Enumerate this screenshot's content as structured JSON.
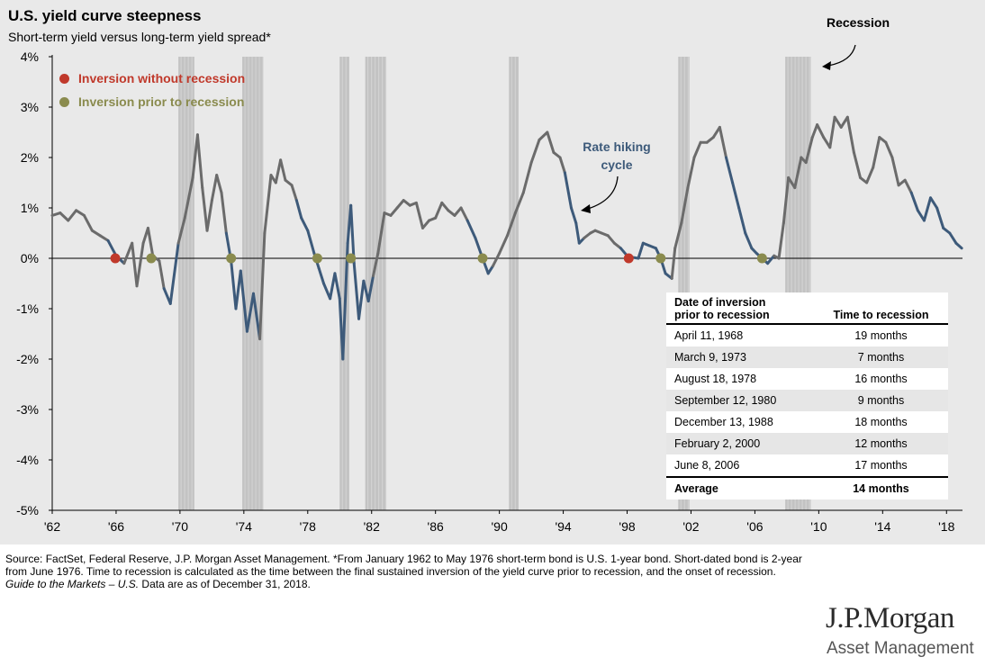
{
  "title": "U.S. yield curve steepness",
  "subtitle": "Short-term yield versus long-term yield spread*",
  "legend": {
    "red": "Inversion without recession",
    "olive": "Inversion prior to recession"
  },
  "annotations": {
    "recession": "Recession",
    "hiking_line1": "Rate hiking",
    "hiking_line2": "cycle"
  },
  "table": {
    "header_col1_line1": "Date of inversion",
    "header_col1_line2": "prior to recession",
    "header_col2": "Time to recession",
    "rows": [
      {
        "date": "April 11, 1968",
        "time": "19 months"
      },
      {
        "date": "March 9, 1973",
        "time": "7 months"
      },
      {
        "date": "August 18, 1978",
        "time": "16 months"
      },
      {
        "date": "September 12, 1980",
        "time": "9 months"
      },
      {
        "date": "December 13, 1988",
        "time": "18 months"
      },
      {
        "date": "February 2, 2000",
        "time": "12 months"
      },
      {
        "date": "June 8, 2006",
        "time": "17 months"
      }
    ],
    "footer_label": "Average",
    "footer_value": "14 months"
  },
  "footnote": {
    "text": "Source: FactSet, Federal Reserve, J.P. Morgan Asset Management. *From January 1962 to May 1976 short-term bond is U.S. 1-year bond. Short-dated bond is 2-year from June 1976. Time to recession is calculated as the time between the final sustained inversion of the yield curve prior to recession, and the onset of recession.",
    "guide_italic": "Guide to the Markets – U.S.",
    "guide_rest": " Data are as of December 31, 2018."
  },
  "logo": {
    "name": "J.P.Morgan",
    "sub": "Asset Management"
  },
  "colors": {
    "panel_bg": "#e9e9e9",
    "spread_gray": "#6b6b6b",
    "hiking_blue": "#3d5a7a",
    "recession_band": "#c3c3c3",
    "inversion_red": "#c0392b",
    "inversion_olive": "#8a8b4e"
  },
  "chart_data": {
    "type": "line",
    "title": "U.S. yield curve steepness",
    "subtitle": "Short-term yield versus long-term yield spread*",
    "xlabel": "",
    "ylabel": "",
    "xlim": [
      1962,
      2019
    ],
    "ylim": [
      -5,
      4
    ],
    "grid": false,
    "x_tick_labels": [
      {
        "x": 1962,
        "label": "'62"
      },
      {
        "x": 1966,
        "label": "'66"
      },
      {
        "x": 1970,
        "label": "'70"
      },
      {
        "x": 1974,
        "label": "'74"
      },
      {
        "x": 1978,
        "label": "'78"
      },
      {
        "x": 1982,
        "label": "'82"
      },
      {
        "x": 1986,
        "label": "'86"
      },
      {
        "x": 1990,
        "label": "'90"
      },
      {
        "x": 1994,
        "label": "'94"
      },
      {
        "x": 1998,
        "label": "'98"
      },
      {
        "x": 2002,
        "label": "'02"
      },
      {
        "x": 2006,
        "label": "'06"
      },
      {
        "x": 2010,
        "label": "'10"
      },
      {
        "x": 2014,
        "label": "'14"
      },
      {
        "x": 2018,
        "label": "'18"
      }
    ],
    "y_tick_labels": [
      {
        "y": 4,
        "label": "4%"
      },
      {
        "y": 3,
        "label": "3%"
      },
      {
        "y": 2,
        "label": "2%"
      },
      {
        "y": 1,
        "label": "1%"
      },
      {
        "y": 0,
        "label": "0%"
      },
      {
        "y": -1,
        "label": "-1%"
      },
      {
        "y": -2,
        "label": "-2%"
      },
      {
        "y": -3,
        "label": "-3%"
      },
      {
        "y": -4,
        "label": "-4%"
      },
      {
        "y": -5,
        "label": "-5%"
      }
    ],
    "recessions": [
      [
        1969.9,
        1970.9
      ],
      [
        1973.9,
        1975.2
      ],
      [
        1980.0,
        1980.6
      ],
      [
        1981.6,
        1982.9
      ],
      [
        1990.6,
        1991.2
      ],
      [
        2001.2,
        2001.9
      ],
      [
        2007.9,
        2009.5
      ]
    ],
    "series": [
      {
        "name": "Yield curve spread",
        "points": [
          [
            1962.0,
            0.85
          ],
          [
            1962.5,
            0.9
          ],
          [
            1963.0,
            0.75
          ],
          [
            1963.5,
            0.95
          ],
          [
            1964.0,
            0.85
          ],
          [
            1964.5,
            0.55
          ],
          [
            1965.0,
            0.45
          ],
          [
            1965.5,
            0.35
          ],
          [
            1966.0,
            0.05
          ],
          [
            1966.5,
            -0.1
          ],
          [
            1967.0,
            0.3
          ],
          [
            1967.3,
            -0.55
          ],
          [
            1967.7,
            0.3
          ],
          [
            1968.0,
            0.6
          ],
          [
            1968.3,
            0.05
          ],
          [
            1968.7,
            -0.05
          ],
          [
            1969.0,
            -0.6
          ],
          [
            1969.4,
            -0.9
          ],
          [
            1969.9,
            0.3
          ],
          [
            1970.3,
            0.8
          ],
          [
            1970.8,
            1.6
          ],
          [
            1971.1,
            2.45
          ],
          [
            1971.4,
            1.4
          ],
          [
            1971.7,
            0.55
          ],
          [
            1972.0,
            1.15
          ],
          [
            1972.3,
            1.65
          ],
          [
            1972.6,
            1.3
          ],
          [
            1972.9,
            0.5
          ],
          [
            1973.2,
            -0.05
          ],
          [
            1973.5,
            -1.0
          ],
          [
            1973.8,
            -0.25
          ],
          [
            1974.2,
            -1.45
          ],
          [
            1974.6,
            -0.7
          ],
          [
            1975.0,
            -1.6
          ],
          [
            1975.3,
            0.5
          ],
          [
            1975.7,
            1.65
          ],
          [
            1976.0,
            1.5
          ],
          [
            1976.3,
            1.95
          ],
          [
            1976.6,
            1.55
          ],
          [
            1977.0,
            1.45
          ],
          [
            1977.3,
            1.15
          ],
          [
            1977.6,
            0.8
          ],
          [
            1978.0,
            0.55
          ],
          [
            1978.4,
            0.1
          ],
          [
            1978.7,
            -0.2
          ],
          [
            1979.0,
            -0.5
          ],
          [
            1979.4,
            -0.8
          ],
          [
            1979.7,
            -0.3
          ],
          [
            1980.0,
            -0.8
          ],
          [
            1980.2,
            -2.0
          ],
          [
            1980.5,
            0.3
          ],
          [
            1980.7,
            1.05
          ],
          [
            1980.9,
            -0.1
          ],
          [
            1981.2,
            -1.2
          ],
          [
            1981.5,
            -0.45
          ],
          [
            1981.8,
            -0.85
          ],
          [
            1982.1,
            -0.35
          ],
          [
            1982.4,
            0.1
          ],
          [
            1982.8,
            0.9
          ],
          [
            1983.2,
            0.85
          ],
          [
            1983.6,
            1.0
          ],
          [
            1984.0,
            1.15
          ],
          [
            1984.4,
            1.05
          ],
          [
            1984.8,
            1.1
          ],
          [
            1985.2,
            0.6
          ],
          [
            1985.6,
            0.75
          ],
          [
            1986.0,
            0.8
          ],
          [
            1986.4,
            1.1
          ],
          [
            1986.8,
            0.95
          ],
          [
            1987.2,
            0.85
          ],
          [
            1987.6,
            1.0
          ],
          [
            1988.0,
            0.75
          ],
          [
            1988.5,
            0.4
          ],
          [
            1988.95,
            0.0
          ],
          [
            1989.3,
            -0.3
          ],
          [
            1989.6,
            -0.15
          ],
          [
            1990.0,
            0.1
          ],
          [
            1990.5,
            0.45
          ],
          [
            1991.0,
            0.9
          ],
          [
            1991.5,
            1.3
          ],
          [
            1992.0,
            1.9
          ],
          [
            1992.5,
            2.35
          ],
          [
            1993.0,
            2.5
          ],
          [
            1993.4,
            2.1
          ],
          [
            1993.8,
            2.0
          ],
          [
            1994.1,
            1.7
          ],
          [
            1994.5,
            1.0
          ],
          [
            1994.8,
            0.7
          ],
          [
            1995.0,
            0.3
          ],
          [
            1995.3,
            0.4
          ],
          [
            1995.7,
            0.5
          ],
          [
            1996.0,
            0.55
          ],
          [
            1996.4,
            0.5
          ],
          [
            1996.8,
            0.45
          ],
          [
            1997.2,
            0.3
          ],
          [
            1997.6,
            0.2
          ],
          [
            1998.0,
            0.05
          ],
          [
            1998.3,
            0.02
          ],
          [
            1998.7,
            0.0
          ],
          [
            1999.0,
            0.3
          ],
          [
            1999.4,
            0.25
          ],
          [
            1999.8,
            0.2
          ],
          [
            2000.1,
            0.0
          ],
          [
            2000.4,
            -0.3
          ],
          [
            2000.8,
            -0.4
          ],
          [
            2001.0,
            0.2
          ],
          [
            2001.4,
            0.7
          ],
          [
            2001.8,
            1.4
          ],
          [
            2002.2,
            2.0
          ],
          [
            2002.6,
            2.3
          ],
          [
            2003.0,
            2.3
          ],
          [
            2003.4,
            2.4
          ],
          [
            2003.8,
            2.6
          ],
          [
            2004.2,
            2.0
          ],
          [
            2004.6,
            1.5
          ],
          [
            2005.0,
            1.0
          ],
          [
            2005.4,
            0.5
          ],
          [
            2005.8,
            0.2
          ],
          [
            2006.1,
            0.1
          ],
          [
            2006.45,
            0.0
          ],
          [
            2006.8,
            -0.1
          ],
          [
            2007.2,
            0.05
          ],
          [
            2007.5,
            0.0
          ],
          [
            2007.8,
            0.7
          ],
          [
            2008.1,
            1.6
          ],
          [
            2008.5,
            1.4
          ],
          [
            2008.9,
            2.0
          ],
          [
            2009.2,
            1.9
          ],
          [
            2009.6,
            2.4
          ],
          [
            2009.9,
            2.65
          ],
          [
            2010.3,
            2.4
          ],
          [
            2010.7,
            2.2
          ],
          [
            2011.0,
            2.8
          ],
          [
            2011.4,
            2.6
          ],
          [
            2011.8,
            2.8
          ],
          [
            2012.2,
            2.1
          ],
          [
            2012.6,
            1.6
          ],
          [
            2013.0,
            1.5
          ],
          [
            2013.4,
            1.8
          ],
          [
            2013.8,
            2.4
          ],
          [
            2014.2,
            2.3
          ],
          [
            2014.6,
            2.0
          ],
          [
            2015.0,
            1.45
          ],
          [
            2015.4,
            1.55
          ],
          [
            2015.8,
            1.3
          ],
          [
            2016.2,
            0.95
          ],
          [
            2016.6,
            0.75
          ],
          [
            2017.0,
            1.2
          ],
          [
            2017.4,
            1.0
          ],
          [
            2017.8,
            0.6
          ],
          [
            2018.2,
            0.5
          ],
          [
            2018.6,
            0.3
          ],
          [
            2018.95,
            0.2
          ]
        ]
      }
    ],
    "rate_hiking_ranges": [
      [
        1965.5,
        1966.7
      ],
      [
        1969.0,
        1969.9
      ],
      [
        1972.9,
        1975.0
      ],
      [
        1977.3,
        1982.1
      ],
      [
        1988.0,
        1989.6
      ],
      [
        1994.1,
        1995.3
      ],
      [
        1997.6,
        2000.8
      ],
      [
        2004.2,
        2007.2
      ],
      [
        2015.8,
        2018.95
      ]
    ],
    "inversion_points": [
      {
        "x": 1965.95,
        "y": 0.0,
        "type": "without_recession"
      },
      {
        "x": 1998.1,
        "y": 0.0,
        "type": "without_recession"
      },
      {
        "x": 1968.2,
        "y": 0.0,
        "type": "prior_to_recession"
      },
      {
        "x": 1973.2,
        "y": 0.0,
        "type": "prior_to_recession"
      },
      {
        "x": 1978.6,
        "y": 0.0,
        "type": "prior_to_recession"
      },
      {
        "x": 1980.7,
        "y": 0.0,
        "type": "prior_to_recession"
      },
      {
        "x": 1988.95,
        "y": 0.0,
        "type": "prior_to_recession"
      },
      {
        "x": 2000.1,
        "y": 0.0,
        "type": "prior_to_recession"
      },
      {
        "x": 2006.45,
        "y": 0.0,
        "type": "prior_to_recession"
      }
    ]
  }
}
